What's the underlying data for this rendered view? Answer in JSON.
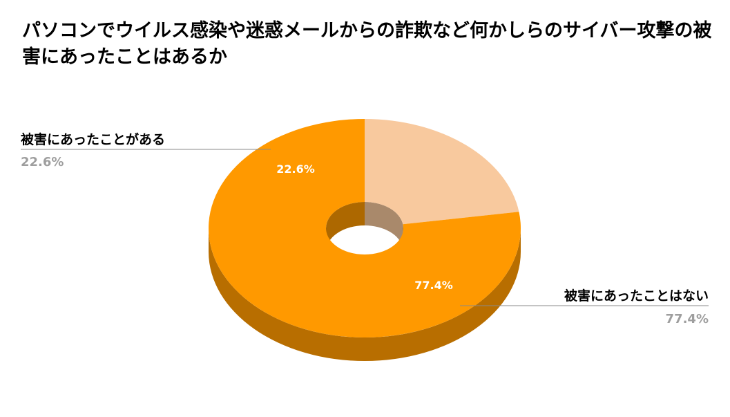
{
  "chart_data": {
    "type": "pie",
    "variant": "3d-donut",
    "title": "パソコンでウイルス感染や迷惑メールからの詐欺など何かしらのサイバー攻撃の被害にあったことはあるか",
    "slices": [
      {
        "label": "被害にあったことがある",
        "value": 22.6,
        "display": "22.6%",
        "color": "#f8c99e"
      },
      {
        "label": "被害にあったことはない",
        "value": 77.4,
        "display": "77.4%",
        "color": "#ff9900"
      }
    ],
    "legend": "callouts"
  }
}
